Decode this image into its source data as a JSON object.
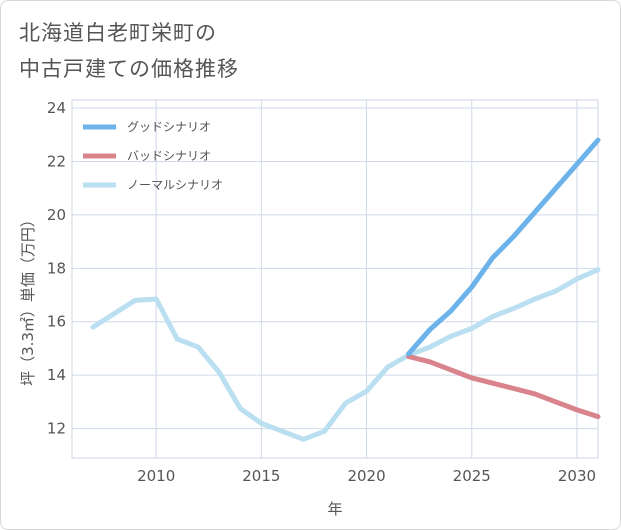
{
  "title_line1": "北海道白老町栄町の",
  "title_line2": "中古戸建ての価格推移",
  "chart_data": {
    "type": "line",
    "xlabel": "年",
    "ylabel": "坪（3.3㎡）単価（万円）",
    "xlim": [
      2006,
      2031
    ],
    "ylim": [
      10.9,
      24.3
    ],
    "x_ticks": [
      2010,
      2015,
      2020,
      2025,
      2030
    ],
    "y_ticks": [
      12,
      14,
      16,
      18,
      20,
      22,
      24
    ],
    "grid": true,
    "legend_position": "top-left",
    "series": [
      {
        "name": "グッドシナリオ",
        "color": "#6bb3ea",
        "width": 5,
        "x": [
          2022,
          2023,
          2024,
          2025,
          2026,
          2027,
          2028,
          2029,
          2030,
          2031
        ],
        "y": [
          14.8,
          15.7,
          16.4,
          17.3,
          18.4,
          19.2,
          20.1,
          21.0,
          21.9,
          22.8
        ]
      },
      {
        "name": "バッドシナリオ",
        "color": "#d9848c",
        "width": 5,
        "x": [
          2022,
          2023,
          2024,
          2025,
          2026,
          2027,
          2028,
          2029,
          2030,
          2031
        ],
        "y": [
          14.7,
          14.5,
          14.2,
          13.9,
          13.7,
          13.5,
          13.3,
          13.0,
          12.7,
          12.45
        ]
      },
      {
        "name": "ノーマルシナリオ",
        "color": "#badff0",
        "width": 5,
        "x": [
          2007,
          2008,
          2009,
          2010,
          2011,
          2012,
          2013,
          2014,
          2015,
          2016,
          2017,
          2018,
          2019,
          2020,
          2021,
          2022,
          2023,
          2024,
          2025,
          2026,
          2027,
          2028,
          2029,
          2030,
          2031
        ],
        "y": [
          15.8,
          16.3,
          16.8,
          16.85,
          15.35,
          15.05,
          14.1,
          12.75,
          12.2,
          11.9,
          11.6,
          11.9,
          12.95,
          13.4,
          14.3,
          14.75,
          15.05,
          15.45,
          15.75,
          16.2,
          16.5,
          16.85,
          17.15,
          17.6,
          17.95
        ]
      }
    ]
  }
}
